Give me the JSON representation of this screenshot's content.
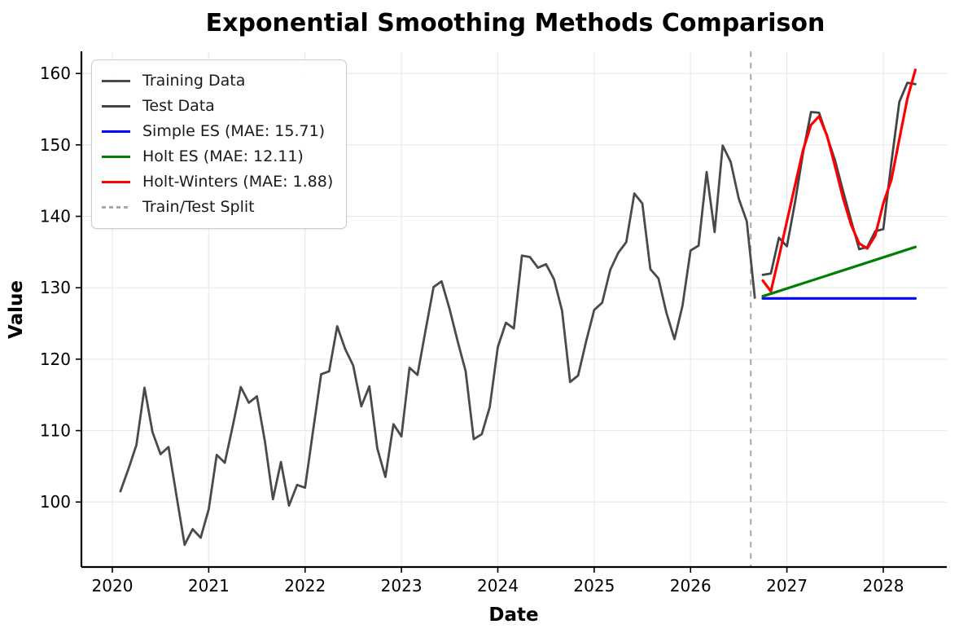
{
  "figure": {
    "background": "#ffffff"
  },
  "chart_data": {
    "type": "line",
    "title": "Exponential Smoothing Methods Comparison",
    "xlabel": "Date",
    "ylabel": "Value",
    "xlim": [
      2019.679,
      2028.659
    ],
    "ylim": [
      90.9,
      163.1
    ],
    "x_ticks": [
      2020,
      2021,
      2022,
      2023,
      2024,
      2025,
      2026,
      2027,
      2028
    ],
    "y_ticks": [
      100,
      110,
      120,
      130,
      140,
      150,
      160
    ],
    "grid": true,
    "grid_color": "#e8e8e8",
    "legend_position": "upper-left",
    "split_line": {
      "x": 2026.625,
      "color": "#aaaaaa",
      "dash": [
        7,
        7
      ]
    },
    "series": [
      {
        "name": "Training Data",
        "color": "#4a4a4a",
        "width": 2.8,
        "x_start": 2020.0833,
        "x_step": 0.083333,
        "values": [
          101.5,
          104.6,
          108.0,
          116.0,
          109.8,
          106.7,
          107.7,
          100.8,
          94.0,
          96.2,
          95.0,
          99.0,
          106.6,
          105.5,
          110.7,
          116.1,
          113.9,
          114.8,
          108.5,
          100.4,
          105.6,
          99.5,
          102.4,
          102.0,
          110.0,
          117.9,
          118.3,
          124.6,
          121.4,
          119.1,
          113.4,
          116.2,
          107.5,
          103.5,
          110.9,
          109.2,
          118.8,
          117.8,
          124.0,
          130.1,
          130.9,
          127.0,
          122.5,
          118.3,
          108.8,
          109.5,
          113.3,
          121.7,
          125.1,
          124.3,
          134.5,
          134.3,
          132.8,
          133.3,
          131.2,
          126.8,
          116.8,
          117.7,
          122.5,
          126.9,
          127.9,
          132.5,
          134.9,
          136.4,
          143.2,
          141.8,
          132.6,
          131.3,
          126.5,
          122.8,
          127.5,
          135.2,
          135.9,
          146.2,
          137.8,
          149.9,
          147.6,
          142.5,
          139.3,
          128.6
        ]
      },
      {
        "name": "Test Data",
        "color": "#434343",
        "width": 2.8,
        "x_start": 2026.75,
        "x_step": 0.083333,
        "values": [
          131.8,
          132.0,
          137.0,
          135.8,
          141.9,
          148.8,
          154.6,
          154.5,
          151.2,
          147.8,
          143.5,
          139.4,
          135.4,
          135.7,
          137.9,
          138.2,
          147.5,
          156.0,
          158.7,
          158.5
        ]
      },
      {
        "name": "Simple ES (MAE: 15.71)",
        "color": "#0000ff",
        "width": 3.2,
        "x": [
          2026.75,
          2028.333
        ],
        "values": [
          128.5,
          128.5
        ]
      },
      {
        "name": "Holt ES (MAE: 12.11)",
        "color": "#008000",
        "width": 3.2,
        "x": [
          2026.75,
          2028.333
        ],
        "values": [
          128.8,
          135.7
        ]
      },
      {
        "name": "Holt-Winters (MAE: 1.88)",
        "color": "#ff0000",
        "width": 3.2,
        "x_start": 2026.75,
        "x_step": 0.083333,
        "values": [
          131.0,
          129.5,
          134.3,
          139.3,
          144.3,
          149.2,
          152.8,
          154.0,
          151.3,
          147.0,
          142.5,
          138.8,
          136.2,
          135.5,
          137.3,
          141.8,
          145.1,
          150.8,
          156.5,
          160.5
        ]
      }
    ],
    "legend": [
      {
        "label": "Training Data",
        "color": "#4a4a4a",
        "dash": false
      },
      {
        "label": "Test Data",
        "color": "#434343",
        "dash": false
      },
      {
        "label": "Simple ES (MAE: 15.71)",
        "color": "#0000ff",
        "dash": false
      },
      {
        "label": "Holt ES (MAE: 12.11)",
        "color": "#008000",
        "dash": false
      },
      {
        "label": "Holt-Winters (MAE: 1.88)",
        "color": "#ff0000",
        "dash": false
      },
      {
        "label": "Train/Test Split",
        "color": "#aaaaaa",
        "dash": true
      }
    ]
  }
}
